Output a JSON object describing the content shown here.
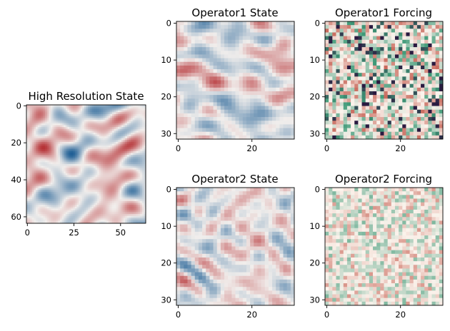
{
  "chart_data": [
    {
      "id": "hr",
      "type": "heatmap",
      "title": "High Resolution State",
      "grid_size": 64,
      "colormap": "diverging-red-white-blue",
      "xticks": [
        0,
        25,
        50
      ],
      "yticks": [
        0,
        20,
        40,
        60
      ],
      "grid": false
    },
    {
      "id": "op1s",
      "type": "heatmap",
      "title": "Operator1 State",
      "grid_size": 32,
      "colormap": "diverging-red-white-blue",
      "xticks": [
        0,
        20
      ],
      "yticks": [
        0,
        10,
        20,
        30
      ],
      "grid": false
    },
    {
      "id": "op1f",
      "type": "heatmap",
      "title": "Operator1 Forcing",
      "grid_size": 32,
      "colormap": "cream-red-green-navy",
      "xticks": [
        0,
        20
      ],
      "yticks": [
        0,
        10,
        20,
        30
      ],
      "grid": false
    },
    {
      "id": "op2s",
      "type": "heatmap",
      "title": "Operator2 State",
      "grid_size": 32,
      "colormap": "diverging-red-white-blue",
      "xticks": [
        0,
        20
      ],
      "yticks": [
        0,
        10,
        20,
        30
      ],
      "grid": false
    },
    {
      "id": "op2f",
      "type": "heatmap",
      "title": "Operator2 Forcing",
      "grid_size": 32,
      "colormap": "cream-red-green-navy",
      "xticks": [
        0,
        20
      ],
      "yticks": [
        0,
        10,
        20,
        30
      ],
      "grid": false
    }
  ],
  "colors": {
    "diverging_neg": "#1f5f95",
    "diverging_mid": "#f1eeec",
    "diverging_pos": "#b2272b",
    "forcing_low": "#fbf3ec",
    "forcing_red": "#c8675a",
    "forcing_green": "#3f9a78",
    "forcing_dark": "#2a1a40"
  }
}
